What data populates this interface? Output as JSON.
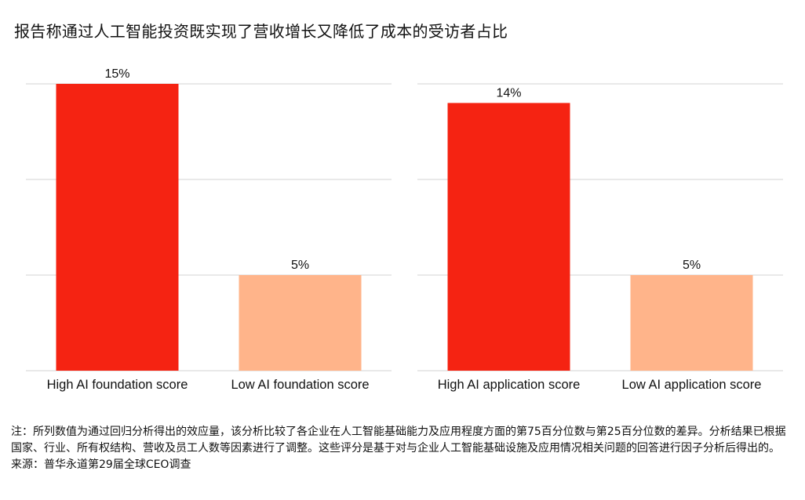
{
  "title": "报告称通过人工智能投资既实现了营收增长又降低了成本的受访者占比",
  "chart_data": [
    {
      "type": "bar",
      "categories": [
        "High AI foundation score",
        "Low AI foundation score"
      ],
      "values": [
        15,
        5
      ],
      "data_labels": [
        "15%",
        "5%"
      ],
      "ylim": [
        0,
        15
      ],
      "grid": true,
      "colors": [
        "#f52312",
        "#ffb48a"
      ]
    },
    {
      "type": "bar",
      "categories": [
        "High AI application score",
        "Low AI application score"
      ],
      "values": [
        14,
        5
      ],
      "data_labels": [
        "14%",
        "5%"
      ],
      "ylim": [
        0,
        15
      ],
      "grid": true,
      "colors": [
        "#f52312",
        "#ffb48a"
      ]
    }
  ],
  "notes": {
    "note": "注：所列数值为通过回归分析得出的效应量，该分析比较了各企业在人工智能基础能力及应用程度方面的第75百分位数与第25百分位数的差异。分析结果已根据国家、行业、所有权结构、营收及员工人数等因素进行了调整。这些评分是基于对与企业人工智能基础设施及应用情况相关问题的回答进行因子分析后得出的。",
    "source": "来源：普华永道第29届全球CEO调查"
  }
}
